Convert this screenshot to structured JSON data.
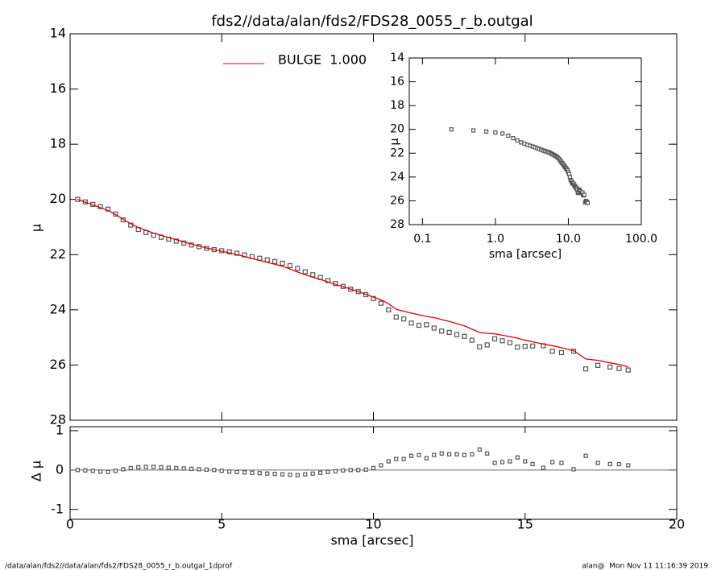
{
  "chart_data": [
    {
      "type": "line",
      "title": "fds2//data/alan/fds2/FDS28_0055_r_b.outgal",
      "y_label": "μ",
      "x": [
        0.25,
        0.5,
        0.75,
        1.0,
        1.25,
        1.5,
        1.75,
        2.0,
        2.25,
        2.5,
        2.75,
        3.0,
        3.25,
        3.5,
        3.75,
        4.0,
        4.25,
        4.5,
        4.75,
        5.0,
        5.25,
        5.5,
        5.75,
        6.0,
        6.25,
        6.5,
        6.75,
        7.0,
        7.25,
        7.5,
        7.75,
        8.0,
        8.25,
        8.5,
        8.75,
        9.0,
        9.25,
        9.5,
        9.75,
        10.0,
        10.25,
        10.5,
        10.75,
        11.0,
        11.25,
        11.5,
        11.75,
        12.0,
        12.25,
        12.5,
        12.75,
        13.0,
        13.25,
        13.5,
        13.75,
        14.0,
        14.25,
        14.5,
        14.75,
        15.0,
        15.25,
        15.6,
        15.9,
        16.2,
        16.6,
        17.0,
        17.4,
        17.8,
        18.1,
        18.4
      ],
      "series": [
        {
          "color": "#555555",
          "marker": "square",
          "values": [
            20.0,
            20.09,
            20.18,
            20.26,
            20.35,
            20.53,
            20.74,
            20.93,
            21.09,
            21.2,
            21.3,
            21.37,
            21.44,
            21.51,
            21.58,
            21.65,
            21.71,
            21.77,
            21.82,
            21.86,
            21.9,
            21.95,
            22.01,
            22.07,
            22.13,
            22.19,
            22.25,
            22.31,
            22.4,
            22.5,
            22.62,
            22.73,
            22.83,
            22.94,
            23.05,
            23.15,
            23.25,
            23.34,
            23.45,
            23.59,
            23.76,
            24.0,
            24.26,
            24.33,
            24.48,
            24.56,
            24.54,
            24.66,
            24.77,
            24.82,
            24.9,
            24.96,
            25.1,
            25.34,
            25.27,
            25.05,
            25.12,
            25.19,
            25.35,
            25.32,
            25.31,
            25.3,
            25.5,
            25.55,
            25.5,
            26.14,
            26.01,
            26.07,
            26.13,
            26.18
          ]
        },
        {
          "name": "BULGE  1.000",
          "color": "#e00000",
          "marker": "line",
          "values": [
            20.0,
            20.1,
            20.2,
            20.3,
            20.4,
            20.55,
            20.72,
            20.88,
            21.02,
            21.12,
            21.22,
            21.3,
            21.38,
            21.46,
            21.54,
            21.62,
            21.69,
            21.76,
            21.82,
            21.88,
            21.94,
            22.0,
            22.07,
            22.14,
            22.21,
            22.28,
            22.35,
            22.42,
            22.52,
            22.63,
            22.73,
            22.82,
            22.9,
            22.99,
            23.08,
            23.16,
            23.25,
            23.34,
            23.44,
            23.54,
            23.64,
            23.78,
            23.98,
            24.05,
            24.12,
            24.18,
            24.24,
            24.28,
            24.35,
            24.42,
            24.5,
            24.58,
            24.7,
            24.82,
            24.85,
            24.87,
            24.92,
            24.97,
            25.03,
            25.1,
            25.16,
            25.24,
            25.3,
            25.37,
            25.48,
            25.78,
            25.83,
            25.92,
            25.98,
            26.06
          ]
        }
      ],
      "ylim": [
        14,
        28
      ],
      "y_inverted": true,
      "yticks": [
        14,
        16,
        18,
        20,
        22,
        24,
        26,
        28
      ],
      "legend": "top-left"
    },
    {
      "type": "scatter",
      "x_label": "sma [arcsec]",
      "y_label": "Δ μ",
      "xlim": [
        0,
        20
      ],
      "xticks": [
        0,
        5,
        10,
        15,
        20
      ],
      "ylim": [
        -1.25,
        1.1
      ],
      "yticks": [
        1,
        0,
        -1
      ],
      "reference_line": 0,
      "color": "#555555",
      "values": [
        0,
        -0.01,
        -0.02,
        -0.04,
        -0.05,
        -0.02,
        0.02,
        0.05,
        0.07,
        0.08,
        0.08,
        0.07,
        0.06,
        0.05,
        0.04,
        0.03,
        0.02,
        0.01,
        0.0,
        -0.02,
        -0.04,
        -0.05,
        -0.06,
        -0.07,
        -0.08,
        -0.09,
        -0.1,
        -0.11,
        -0.12,
        -0.13,
        -0.11,
        -0.09,
        -0.07,
        -0.05,
        -0.03,
        -0.01,
        0.0,
        0.0,
        0.01,
        0.05,
        0.12,
        0.22,
        0.28,
        0.28,
        0.36,
        0.38,
        0.3,
        0.38,
        0.42,
        0.4,
        0.4,
        0.38,
        0.4,
        0.52,
        0.42,
        0.18,
        0.2,
        0.22,
        0.32,
        0.22,
        0.15,
        0.06,
        0.2,
        0.18,
        0.02,
        0.36,
        0.18,
        0.15,
        0.15,
        0.12
      ]
    },
    {
      "type": "scatter",
      "x_label": "sma [arcsec]",
      "y_label": "μ",
      "log_x": true,
      "xlim": [
        0.066,
        100
      ],
      "xticks": [
        0.1,
        {
          "value": 1,
          "label": "1.0"
        },
        {
          "value": 10,
          "label": "10.0"
        },
        {
          "value": 100,
          "label": "100.0"
        }
      ],
      "ylim": [
        14,
        28
      ],
      "y_inverted": true,
      "yticks": [
        14,
        16,
        18,
        20,
        22,
        24,
        26,
        28
      ]
    }
  ],
  "footer": {
    "left": "/data/alan/fds2//data/alan/fds2/FDS28_0055_r_b.outgal_1dprof",
    "right": "alan@  Mon Nov 11 11:16:39 2019"
  }
}
